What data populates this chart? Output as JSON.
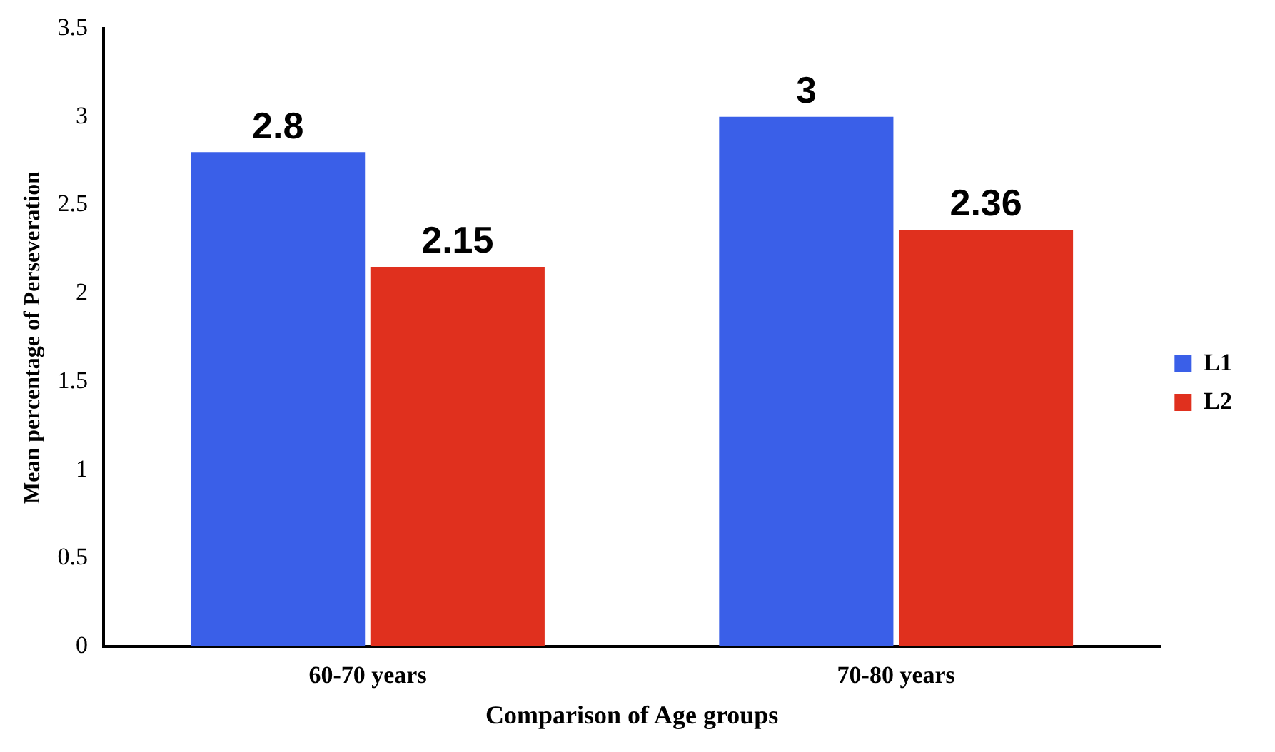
{
  "chart_data": {
    "type": "bar",
    "xlabel": "Comparison of Age groups",
    "ylabel": "Mean percentage of Perseveration",
    "categories": [
      "60-70 years",
      "70-80 years"
    ],
    "series": [
      {
        "name": "L1",
        "color": "#3a5fe8",
        "values": [
          2.8,
          3
        ]
      },
      {
        "name": "L2",
        "color": "#e0301e",
        "values": [
          2.15,
          2.36
        ]
      }
    ],
    "ylim": [
      0,
      3.5
    ],
    "yticks": [
      0,
      0.5,
      1,
      1.5,
      2,
      2.5,
      3,
      3.5
    ],
    "grid": false,
    "legend": "right",
    "data_labels": true
  }
}
